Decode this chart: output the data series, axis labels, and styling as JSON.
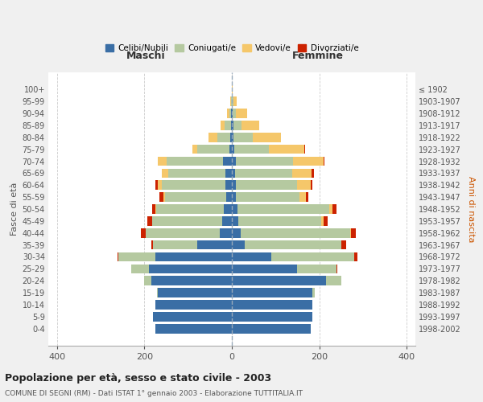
{
  "age_groups": [
    "0-4",
    "5-9",
    "10-14",
    "15-19",
    "20-24",
    "25-29",
    "30-34",
    "35-39",
    "40-44",
    "45-49",
    "50-54",
    "55-59",
    "60-64",
    "65-69",
    "70-74",
    "75-79",
    "80-84",
    "85-89",
    "90-94",
    "95-99",
    "100+"
  ],
  "birth_years": [
    "1998-2002",
    "1993-1997",
    "1988-1992",
    "1983-1987",
    "1978-1982",
    "1973-1977",
    "1968-1972",
    "1963-1967",
    "1958-1962",
    "1953-1957",
    "1948-1952",
    "1943-1947",
    "1938-1942",
    "1933-1937",
    "1928-1932",
    "1923-1927",
    "1918-1922",
    "1913-1917",
    "1908-1912",
    "1903-1907",
    "≤ 1902"
  ],
  "colors": {
    "celibi": "#3a6ea5",
    "coniugati": "#b5c9a0",
    "vedovi": "#f5c76a",
    "divorziati": "#cc2200"
  },
  "maschi": {
    "celibi": [
      175,
      180,
      175,
      170,
      185,
      190,
      175,
      80,
      28,
      22,
      18,
      12,
      15,
      15,
      20,
      5,
      3,
      2,
      1,
      0,
      0
    ],
    "coniugati": [
      0,
      0,
      0,
      2,
      15,
      40,
      85,
      100,
      170,
      160,
      155,
      140,
      145,
      130,
      130,
      75,
      30,
      15,
      5,
      2,
      0
    ],
    "vedovi": [
      0,
      0,
      0,
      0,
      0,
      0,
      0,
      0,
      0,
      0,
      2,
      5,
      10,
      15,
      20,
      10,
      20,
      8,
      5,
      2,
      0
    ],
    "divorziati": [
      0,
      0,
      0,
      0,
      0,
      0,
      2,
      5,
      10,
      12,
      8,
      8,
      5,
      0,
      0,
      0,
      0,
      0,
      0,
      0,
      0
    ]
  },
  "femmine": {
    "celibi": [
      180,
      185,
      185,
      185,
      215,
      150,
      90,
      30,
      20,
      15,
      12,
      10,
      10,
      8,
      10,
      5,
      3,
      3,
      2,
      0,
      0
    ],
    "coniugati": [
      0,
      0,
      0,
      5,
      35,
      90,
      190,
      220,
      250,
      190,
      210,
      145,
      140,
      130,
      130,
      80,
      45,
      20,
      8,
      3,
      0
    ],
    "vedovi": [
      0,
      0,
      0,
      0,
      0,
      0,
      0,
      0,
      2,
      5,
      8,
      15,
      30,
      45,
      70,
      80,
      65,
      40,
      25,
      8,
      2
    ],
    "divorziati": [
      0,
      0,
      0,
      0,
      0,
      2,
      8,
      12,
      12,
      10,
      10,
      5,
      5,
      5,
      2,
      2,
      0,
      0,
      0,
      0,
      0
    ]
  },
  "title": "Popolazione per età, sesso e stato civile - 2003",
  "subtitle": "COMUNE DI SEGNI (RM) - Dati ISTAT 1° gennaio 2003 - Elaborazione TUTTITALIA.IT",
  "xlabel_left": "Maschi",
  "xlabel_right": "Femmine",
  "ylabel_left": "Fasce di età",
  "ylabel_right": "Anni di nascita",
  "legend_labels": [
    "Celibi/Nubili",
    "Coniugati/e",
    "Vedovi/e",
    "Divorziati/e"
  ],
  "xlim": 420,
  "bg_color": "#f0f0f0",
  "plot_bg": "#ffffff",
  "grid_color": "#cccccc"
}
